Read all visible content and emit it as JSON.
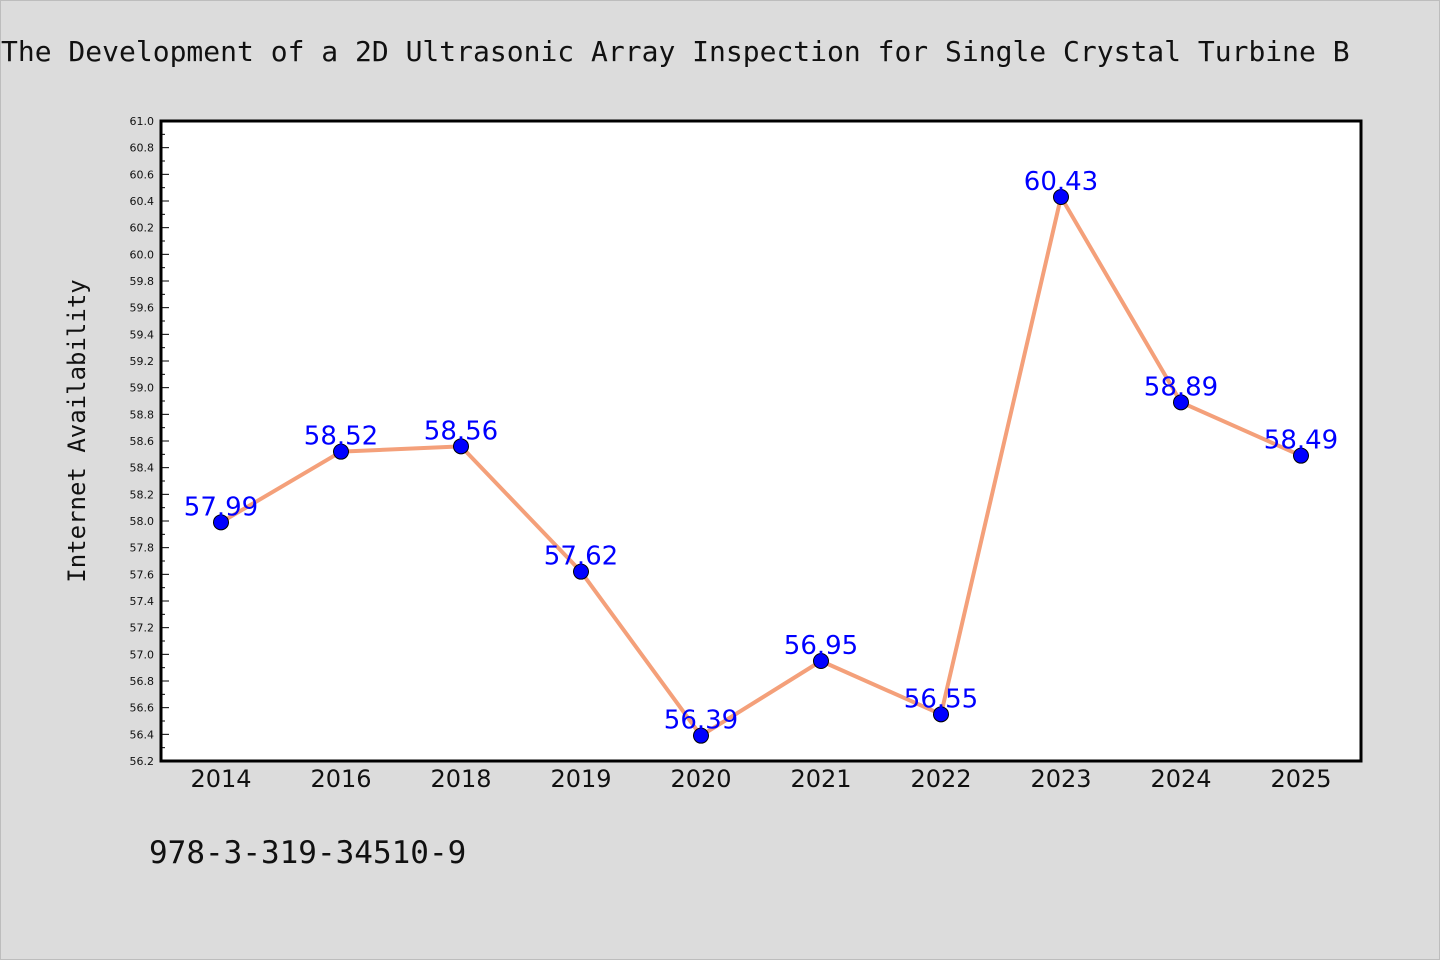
{
  "chart_data": {
    "type": "line",
    "title": "The Development of a 2D Ultrasonic Array Inspection for Single Crystal Turbine B",
    "annotation": "978-3-319-34510-9",
    "xlabel": "",
    "ylabel": "Internet Availability",
    "categories": [
      "2014",
      "2016",
      "2018",
      "2019",
      "2020",
      "2021",
      "2022",
      "2023",
      "2024",
      "2025"
    ],
    "series": [
      {
        "values": [
          57.99,
          58.52,
          58.56,
          57.62,
          56.39,
          56.95,
          56.55,
          60.43,
          58.89,
          58.49
        ]
      }
    ],
    "data_labels": [
      "57.99",
      "58.52",
      "58.56",
      "57.62",
      "56.39",
      "56.95",
      "56.55",
      "60.43",
      "58.89",
      "58.49"
    ],
    "ylim": [
      56.2,
      61.0
    ],
    "yticks": [
      "56.2",
      "56.4",
      "56.6",
      "56.8",
      "57.0",
      "57.2",
      "57.4",
      "57.6",
      "57.8",
      "58.0",
      "58.2",
      "58.4",
      "58.6",
      "58.8",
      "59.0",
      "59.2",
      "59.4",
      "59.6",
      "59.8",
      "60.0",
      "60.2",
      "60.4",
      "60.6",
      "60.8",
      "61.0"
    ],
    "grid": false,
    "legend": "none",
    "colors": {
      "line": "#f4a07a",
      "marker": "#0000ff",
      "marker_edge": "#000000",
      "data_label": "#0000ff",
      "background": "#dcdcdc",
      "plot_background": "#ffffff"
    }
  }
}
